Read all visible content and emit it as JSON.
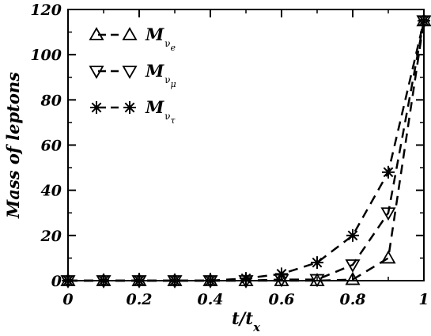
{
  "chart_data": {
    "type": "line",
    "xlabel": {
      "main": "t/t",
      "sub": "x"
    },
    "ylabel": "Mass of leptons",
    "xlim": [
      0,
      1
    ],
    "ylim": [
      0,
      120
    ],
    "xticks": [
      0,
      0.2,
      0.4,
      0.6,
      0.8,
      1
    ],
    "xtick_labels": [
      "0",
      "0.2",
      "0.4",
      "0.6",
      "0.8",
      "1"
    ],
    "yticks": [
      0,
      20,
      40,
      60,
      80,
      100,
      120
    ],
    "ytick_labels": [
      "0",
      "20",
      "40",
      "60",
      "80",
      "100",
      "120"
    ],
    "grid": false,
    "legend_position": "top-left",
    "x": [
      0,
      0.1,
      0.2,
      0.3,
      0.4,
      0.5,
      0.6,
      0.7,
      0.8,
      0.9,
      1.0
    ],
    "series": [
      {
        "key": "nu_e",
        "name": "M",
        "sub": "ν",
        "subsub": "e",
        "marker": "triangle-up",
        "values": [
          0,
          0,
          0,
          0,
          0,
          0,
          0,
          0,
          0.5,
          10,
          115
        ]
      },
      {
        "key": "nu_mu",
        "name": "M",
        "sub": "ν",
        "subsub": "μ",
        "marker": "triangle-down",
        "values": [
          0,
          0,
          0,
          0,
          0,
          0,
          0.5,
          0.5,
          7,
          30,
          115
        ]
      },
      {
        "key": "nu_tau",
        "name": "M",
        "sub": "ν",
        "subsub": "τ",
        "marker": "asterisk",
        "values": [
          0,
          0,
          0,
          0,
          0,
          1,
          3,
          8,
          20,
          48,
          115
        ]
      }
    ],
    "colors": {
      "line": "#000000",
      "background": "#ffffff"
    }
  }
}
